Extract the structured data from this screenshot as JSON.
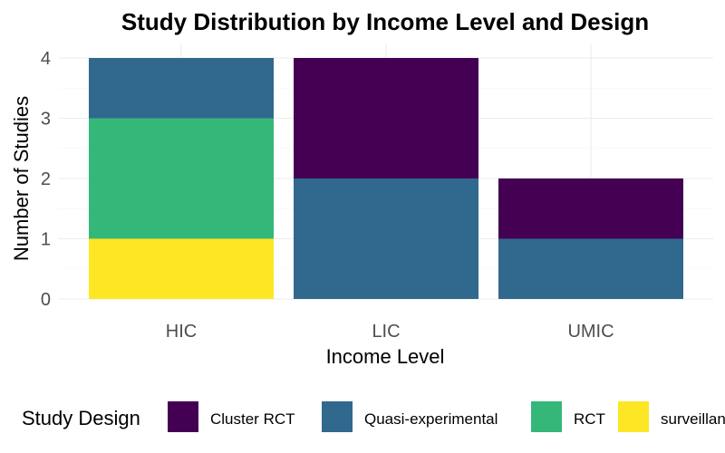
{
  "chart_data": {
    "type": "bar",
    "stacked": true,
    "title": "Study Distribution by Income Level and Design",
    "xlabel": "Income Level",
    "ylabel": "Number of Studies",
    "categories": [
      "HIC",
      "LIC",
      "UMIC"
    ],
    "ylim": [
      0,
      4
    ],
    "yticks": [
      "0",
      "1",
      "2",
      "3",
      "4"
    ],
    "grid": true,
    "legend": {
      "title": "Study Design",
      "position": "bottom"
    },
    "series": [
      {
        "name": "Cluster RCT",
        "color": "#440154",
        "values": [
          0,
          2,
          1
        ]
      },
      {
        "name": "Quasi-experimental",
        "color": "#31688E",
        "values": [
          1,
          2,
          1
        ]
      },
      {
        "name": "RCT",
        "color": "#35B779",
        "values": [
          2,
          0,
          0
        ]
      },
      {
        "name": "surveillance",
        "color": "#FDE725",
        "values": [
          1,
          0,
          0
        ]
      }
    ]
  }
}
